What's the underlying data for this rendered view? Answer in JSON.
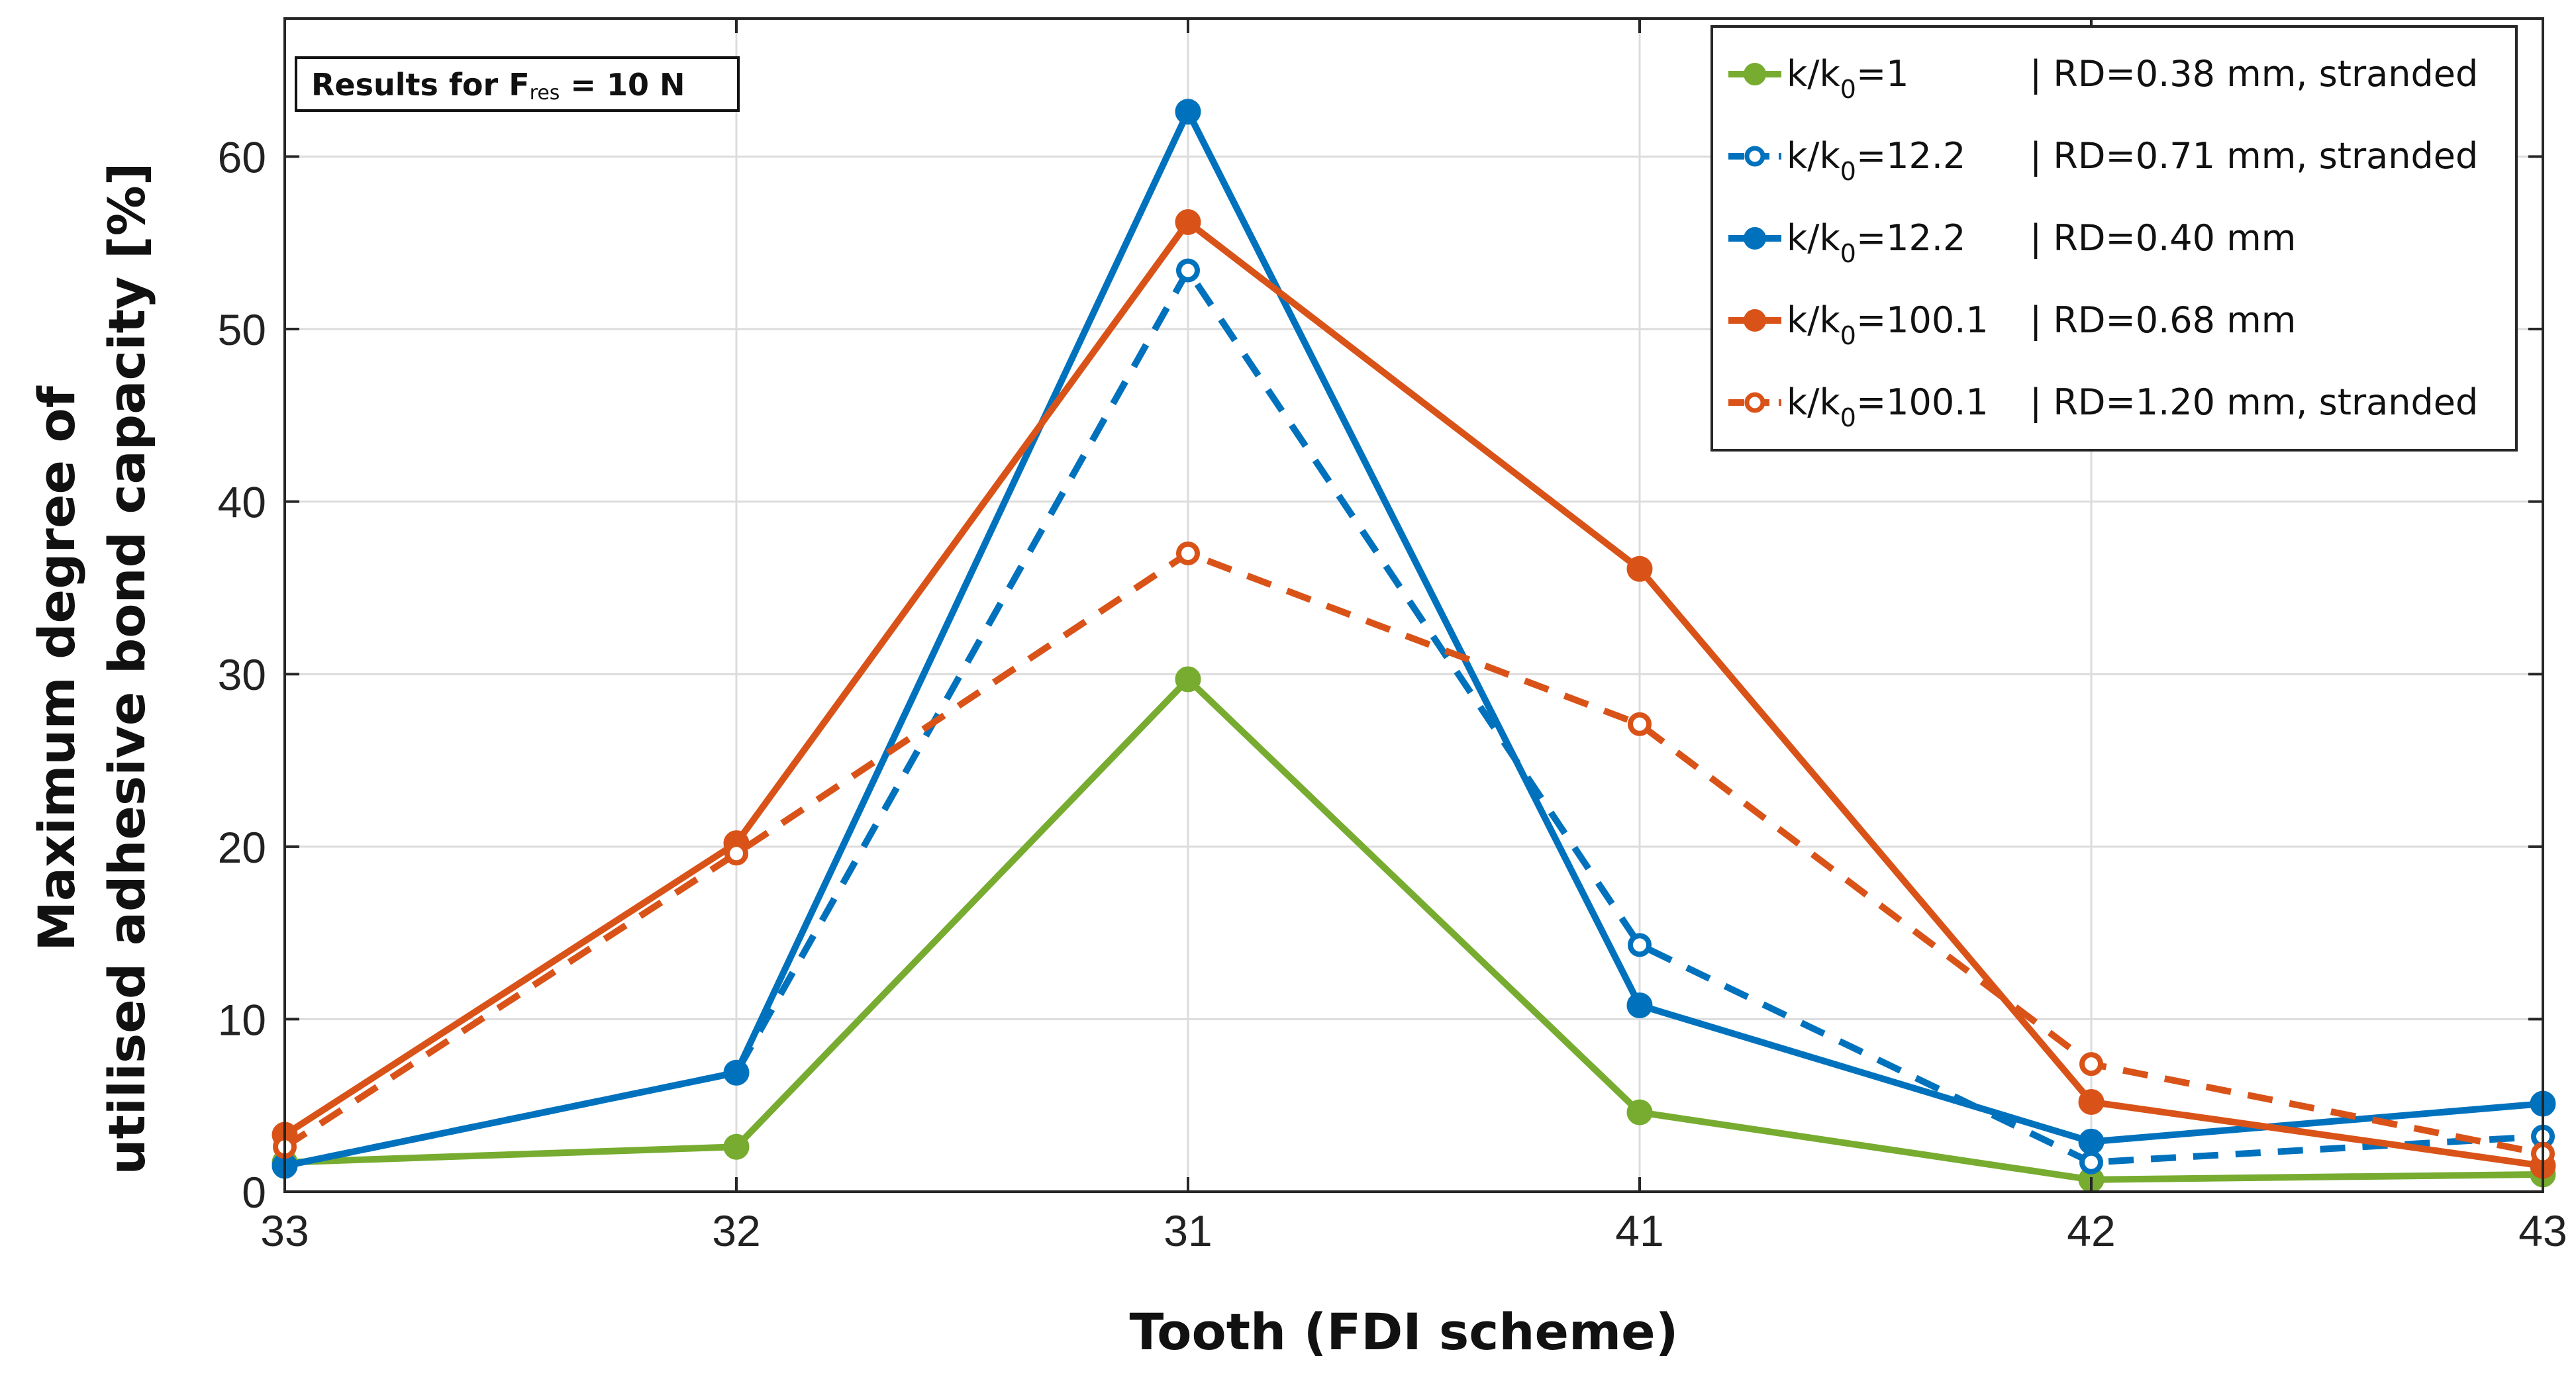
{
  "chart_data": {
    "type": "line",
    "title": "",
    "xlabel": "Tooth (FDI scheme)",
    "ylabel_lines": [
      "Maximum degree of",
      "utilised adhesive bond capacity [%]"
    ],
    "categories": [
      "33",
      "32",
      "31",
      "41",
      "42",
      "43"
    ],
    "ylim": [
      0,
      68
    ],
    "yticks": [
      0,
      10,
      20,
      30,
      40,
      50,
      60
    ],
    "grid": true,
    "annotation": {
      "prefix": "Results for F",
      "subscript": "res",
      "suffix": " = 10 N"
    },
    "legend_position": "top-right",
    "series": [
      {
        "name": "k/k0=1 | RD=0.38 mm, stranded",
        "legend_main": "k/k",
        "legend_sub": "0",
        "legend_ratio": "=1",
        "legend_rd": "| RD=0.38 mm, stranded",
        "color": "#77AC30",
        "style": "solid",
        "marker": "filled",
        "values": [
          1.7,
          2.6,
          29.7,
          4.6,
          0.7,
          1.0
        ]
      },
      {
        "name": "k/k0=12.2 | RD=0.71 mm, stranded",
        "legend_main": "k/k",
        "legend_sub": "0",
        "legend_ratio": "=12.2",
        "legend_rd": "| RD=0.71 mm, stranded",
        "color": "#0072BD",
        "style": "dashed",
        "marker": "open",
        "values": [
          1.5,
          6.9,
          53.4,
          14.3,
          1.7,
          3.2
        ]
      },
      {
        "name": "k/k0=12.2 | RD=0.40 mm",
        "legend_main": "k/k",
        "legend_sub": "0",
        "legend_ratio": "=12.2",
        "legend_rd": "| RD=0.40 mm",
        "color": "#0072BD",
        "style": "solid",
        "marker": "filled",
        "values": [
          1.5,
          6.9,
          62.6,
          10.8,
          2.9,
          5.1
        ]
      },
      {
        "name": "k/k0=100.1 | RD=0.68 mm",
        "legend_main": "k/k",
        "legend_sub": "0",
        "legend_ratio": "=100.1",
        "legend_rd": "| RD=0.68 mm",
        "color": "#D95319",
        "style": "solid",
        "marker": "filled",
        "values": [
          3.3,
          20.2,
          56.2,
          36.1,
          5.2,
          1.5
        ]
      },
      {
        "name": "k/k0=100.1 | RD=1.20 mm, stranded",
        "legend_main": "k/k",
        "legend_sub": "0",
        "legend_ratio": "=100.1",
        "legend_rd": "| RD=1.20 mm, stranded",
        "color": "#D95319",
        "style": "dashed",
        "marker": "open",
        "values": [
          2.6,
          19.6,
          37.0,
          27.1,
          7.4,
          2.2
        ]
      }
    ]
  }
}
